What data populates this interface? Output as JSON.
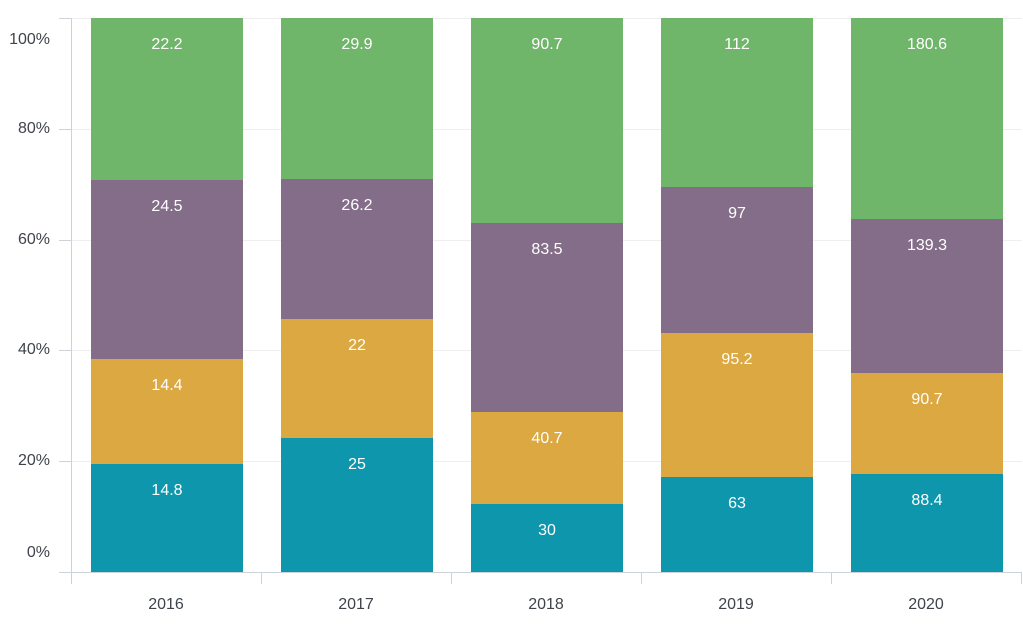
{
  "chart": {
    "style": {
      "background": "#ffffff",
      "axis_line_color": "#ccd3da",
      "tick_color": "#ccd3da",
      "gridline_color": "#eeeeee",
      "axis_label_color": "#3f434a",
      "data_label_color": "#ffffff"
    }
  },
  "chart_data": {
    "type": "bar",
    "subtype": "stacked-100-percent-column",
    "title": "",
    "xlabel": "",
    "ylabel": "",
    "legend": "none",
    "grid": true,
    "categories": [
      "2016",
      "2017",
      "2018",
      "2019",
      "2020"
    ],
    "series": [
      {
        "name": "teal",
        "color": "#0e96ad",
        "values": [
          14.8,
          25,
          30,
          63,
          88.4
        ],
        "labels": [
          "14.8",
          "25",
          "30",
          "63",
          "88.4"
        ]
      },
      {
        "name": "gold",
        "color": "#dba842",
        "values": [
          14.4,
          22,
          40.7,
          95.2,
          90.7
        ],
        "labels": [
          "14.4",
          "22",
          "40.7",
          "95.2",
          "90.7"
        ]
      },
      {
        "name": "purple",
        "color": "#846d88",
        "values": [
          24.5,
          26.2,
          83.5,
          97,
          139.3
        ],
        "labels": [
          "24.5",
          "26.2",
          "83.5",
          "97",
          "139.3"
        ]
      },
      {
        "name": "green",
        "color": "#6fb56a",
        "values": [
          22.2,
          29.9,
          90.7,
          112,
          180.6
        ],
        "labels": [
          "22.2",
          "29.9",
          "90.7",
          "112",
          "180.6"
        ]
      }
    ],
    "y_axis": {
      "min": 0,
      "max": 100,
      "tick_interval": 20,
      "tick_labels": [
        "0%",
        "20%",
        "40%",
        "60%",
        "80%",
        "100%"
      ]
    }
  }
}
